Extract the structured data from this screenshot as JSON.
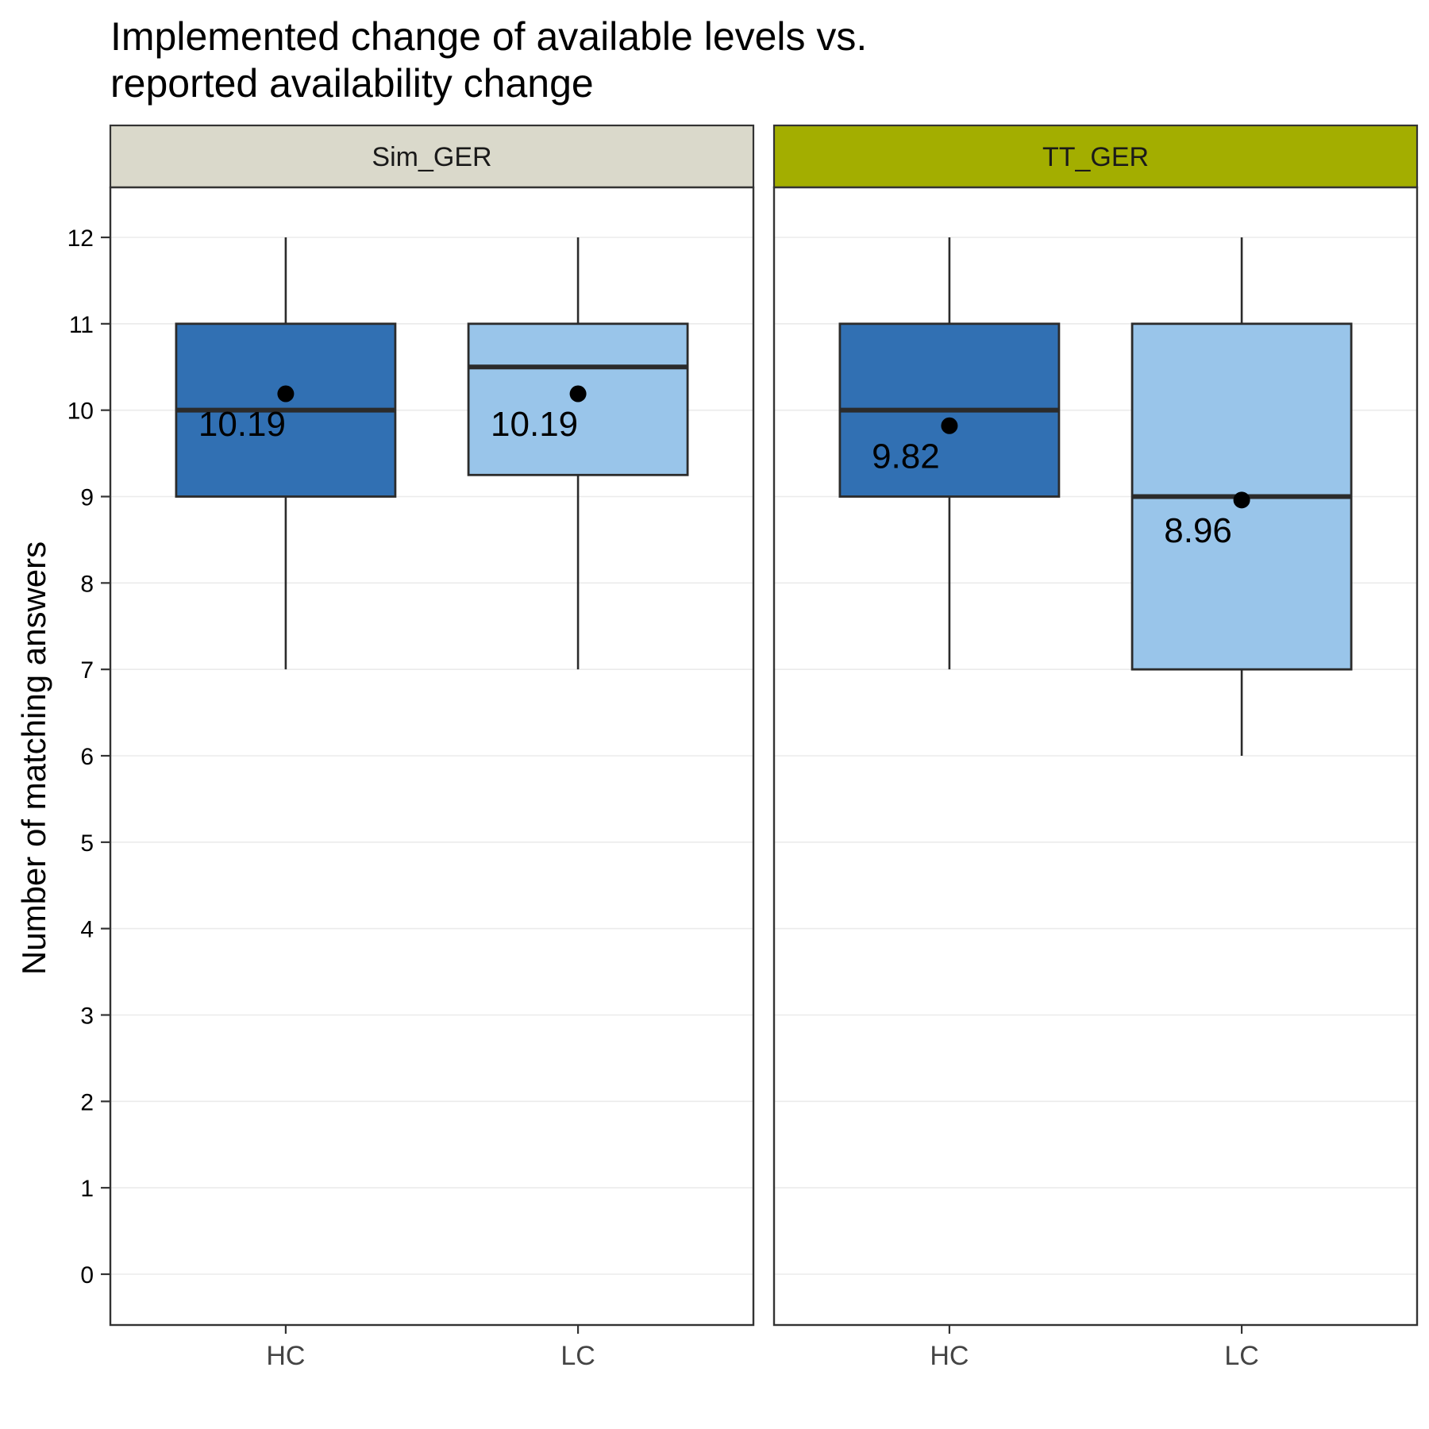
{
  "chart_data": {
    "type": "boxplot",
    "title_lines": [
      "Implemented change of available levels vs.",
      "reported availability change"
    ],
    "ylabel": "Number of matching answers",
    "xlabel": "",
    "ylim": [
      -0.6,
      12.6
    ],
    "y_ticks": [
      0,
      1,
      2,
      3,
      4,
      5,
      6,
      7,
      8,
      9,
      10,
      11,
      12
    ],
    "grid": true,
    "legend": "none",
    "colors": {
      "HC": "#3170b3",
      "LC": "#99c5ea",
      "strip_Sim_GER": "#dad9cb",
      "strip_TT_GER": "#a3ae00",
      "box_outline": "#2b2b2b",
      "grid": "#ebebeb"
    },
    "categories": [
      "HC",
      "LC"
    ],
    "panels": [
      {
        "name": "Sim_GER",
        "boxes": [
          {
            "category": "HC",
            "min": 7,
            "q1": 9,
            "median": 10,
            "q3": 11,
            "max": 12,
            "mean": 10.19,
            "mean_label": "10.19"
          },
          {
            "category": "LC",
            "min": 7,
            "q1": 9.25,
            "median": 10.5,
            "q3": 11,
            "max": 12,
            "mean": 10.19,
            "mean_label": "10.19"
          }
        ]
      },
      {
        "name": "TT_GER",
        "boxes": [
          {
            "category": "HC",
            "min": 7,
            "q1": 9,
            "median": 10,
            "q3": 11,
            "max": 12,
            "mean": 9.82,
            "mean_label": "9.82"
          },
          {
            "category": "LC",
            "min": 6,
            "q1": 7,
            "median": 9,
            "q3": 11,
            "max": 12,
            "mean": 8.96,
            "mean_label": "8.96"
          }
        ]
      }
    ]
  }
}
